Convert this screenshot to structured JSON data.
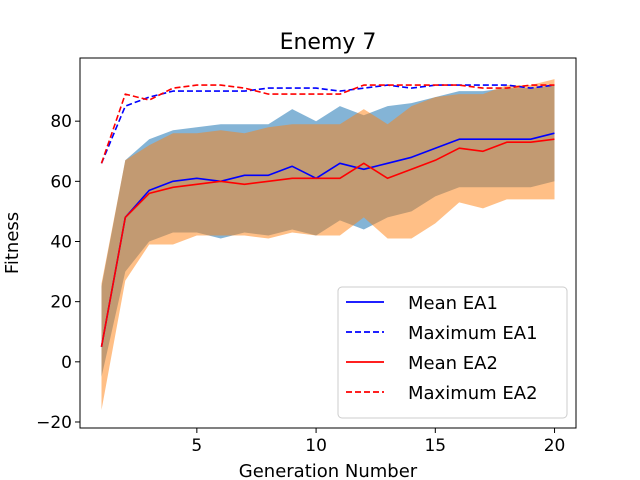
{
  "chart_data": {
    "type": "line",
    "title": "Enemy 7",
    "xlabel": "Generation Number",
    "ylabel": "Fitness",
    "xlim": [
      0.1,
      20.9
    ],
    "ylim": [
      -22,
      101
    ],
    "xticks": [
      5,
      10,
      15,
      20
    ],
    "yticks": [
      -20,
      0,
      20,
      40,
      60,
      80
    ],
    "grid": false,
    "legend_position": "bottom-right",
    "x": [
      1,
      2,
      3,
      4,
      5,
      6,
      7,
      8,
      9,
      10,
      11,
      12,
      13,
      14,
      15,
      16,
      17,
      18,
      19,
      20
    ],
    "series": [
      {
        "name": "Mean EA1",
        "color": "#0000ff",
        "dash": "solid",
        "values": [
          5,
          48,
          57,
          60,
          61,
          60,
          62,
          62,
          65,
          61,
          66,
          64,
          66,
          68,
          71,
          74,
          74,
          74,
          74,
          76
        ]
      },
      {
        "name": "Maximum EA1",
        "color": "#0000ff",
        "dash": "dashed",
        "values": [
          66,
          85,
          88,
          90,
          90,
          90,
          90,
          91,
          91,
          91,
          90,
          91,
          92,
          91,
          92,
          92,
          92,
          92,
          91,
          92
        ]
      },
      {
        "name": "Mean EA2",
        "color": "#ff0000",
        "dash": "solid",
        "values": [
          5,
          48,
          56,
          58,
          59,
          60,
          59,
          60,
          61,
          61,
          61,
          66,
          61,
          64,
          67,
          71,
          70,
          73,
          73,
          74
        ]
      },
      {
        "name": "Maximum EA2",
        "color": "#ff0000",
        "dash": "dashed",
        "values": [
          66,
          89,
          87,
          91,
          92,
          92,
          91,
          89,
          89,
          89,
          89,
          92,
          92,
          92,
          92,
          92,
          91,
          91,
          92,
          92
        ]
      }
    ],
    "bands": [
      {
        "series": "EA1",
        "color": "#1f77b4",
        "opacity": 0.55,
        "lower": [
          -5,
          30,
          40,
          43,
          43,
          41,
          43,
          42,
          44,
          42,
          47,
          44,
          48,
          50,
          55,
          58,
          58,
          58,
          58,
          60
        ],
        "upper": [
          25,
          67,
          74,
          77,
          78,
          79,
          79,
          79,
          84,
          80,
          85,
          82,
          85,
          86,
          88,
          90,
          90,
          91,
          91,
          92
        ]
      },
      {
        "series": "EA2",
        "color": "#ff7f0e",
        "opacity": 0.5,
        "lower": [
          -16,
          27,
          39,
          39,
          42,
          42,
          42,
          41,
          43,
          42,
          42,
          48,
          41,
          41,
          46,
          53,
          51,
          54,
          54,
          54
        ],
        "upper": [
          26,
          67,
          72,
          76,
          76,
          77,
          76,
          78,
          79,
          79,
          79,
          84,
          79,
          85,
          88,
          89,
          89,
          92,
          92,
          94
        ]
      }
    ]
  }
}
